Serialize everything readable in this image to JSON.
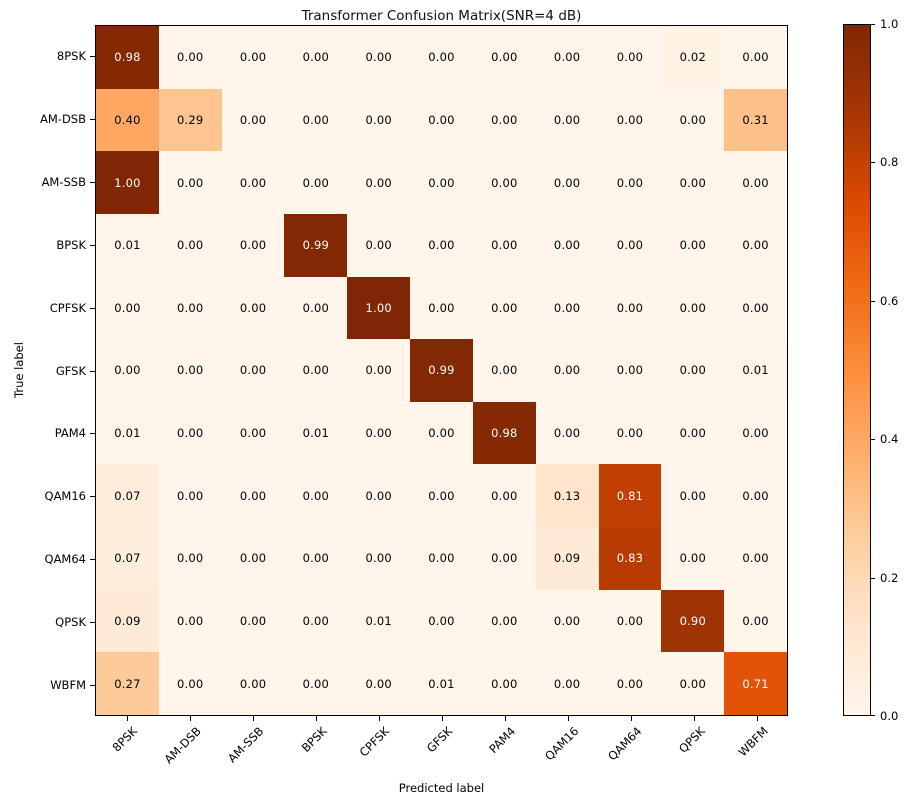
{
  "chart_data": {
    "type": "heatmap",
    "title": "Transformer Confusion Matrix(SNR=4 dB)",
    "xlabel": "Predicted label",
    "ylabel": "True label",
    "classes": [
      "8PSK",
      "AM-DSB",
      "AM-SSB",
      "BPSK",
      "CPFSK",
      "GFSK",
      "PAM4",
      "QAM16",
      "QAM64",
      "QPSK",
      "WBFM"
    ],
    "matrix": [
      [
        0.98,
        0.0,
        0.0,
        0.0,
        0.0,
        0.0,
        0.0,
        0.0,
        0.0,
        0.02,
        0.0
      ],
      [
        0.4,
        0.29,
        0.0,
        0.0,
        0.0,
        0.0,
        0.0,
        0.0,
        0.0,
        0.0,
        0.31
      ],
      [
        1.0,
        0.0,
        0.0,
        0.0,
        0.0,
        0.0,
        0.0,
        0.0,
        0.0,
        0.0,
        0.0
      ],
      [
        0.01,
        0.0,
        0.0,
        0.99,
        0.0,
        0.0,
        0.0,
        0.0,
        0.0,
        0.0,
        0.0
      ],
      [
        0.0,
        0.0,
        0.0,
        0.0,
        1.0,
        0.0,
        0.0,
        0.0,
        0.0,
        0.0,
        0.0
      ],
      [
        0.0,
        0.0,
        0.0,
        0.0,
        0.0,
        0.99,
        0.0,
        0.0,
        0.0,
        0.0,
        0.01
      ],
      [
        0.01,
        0.0,
        0.0,
        0.01,
        0.0,
        0.0,
        0.98,
        0.0,
        0.0,
        0.0,
        0.0
      ],
      [
        0.07,
        0.0,
        0.0,
        0.0,
        0.0,
        0.0,
        0.0,
        0.13,
        0.81,
        0.0,
        0.0
      ],
      [
        0.07,
        0.0,
        0.0,
        0.0,
        0.0,
        0.0,
        0.0,
        0.09,
        0.83,
        0.0,
        0.0
      ],
      [
        0.09,
        0.0,
        0.0,
        0.0,
        0.01,
        0.0,
        0.0,
        0.0,
        0.0,
        0.9,
        0.0
      ],
      [
        0.27,
        0.0,
        0.0,
        0.0,
        0.0,
        0.01,
        0.0,
        0.0,
        0.0,
        0.0,
        0.71
      ]
    ],
    "value_decimals": 2,
    "colormap": {
      "name": "Oranges",
      "stops": [
        "#fff5eb",
        "#fee6ce",
        "#fdd0a2",
        "#fdae6b",
        "#fd8d3c",
        "#f16913",
        "#d94801",
        "#a63603",
        "#7f2704"
      ]
    },
    "text_threshold": 0.5,
    "text_colors": {
      "light": "#ffffff",
      "dark": "#000000"
    },
    "colorbar": {
      "min": 0.0,
      "max": 1.0,
      "ticks": [
        "0.0",
        "0.2",
        "0.4",
        "0.6",
        "0.8",
        "1.0"
      ]
    },
    "axis_ranges": {
      "grid": false,
      "legend": "none (colorbar right)"
    }
  }
}
